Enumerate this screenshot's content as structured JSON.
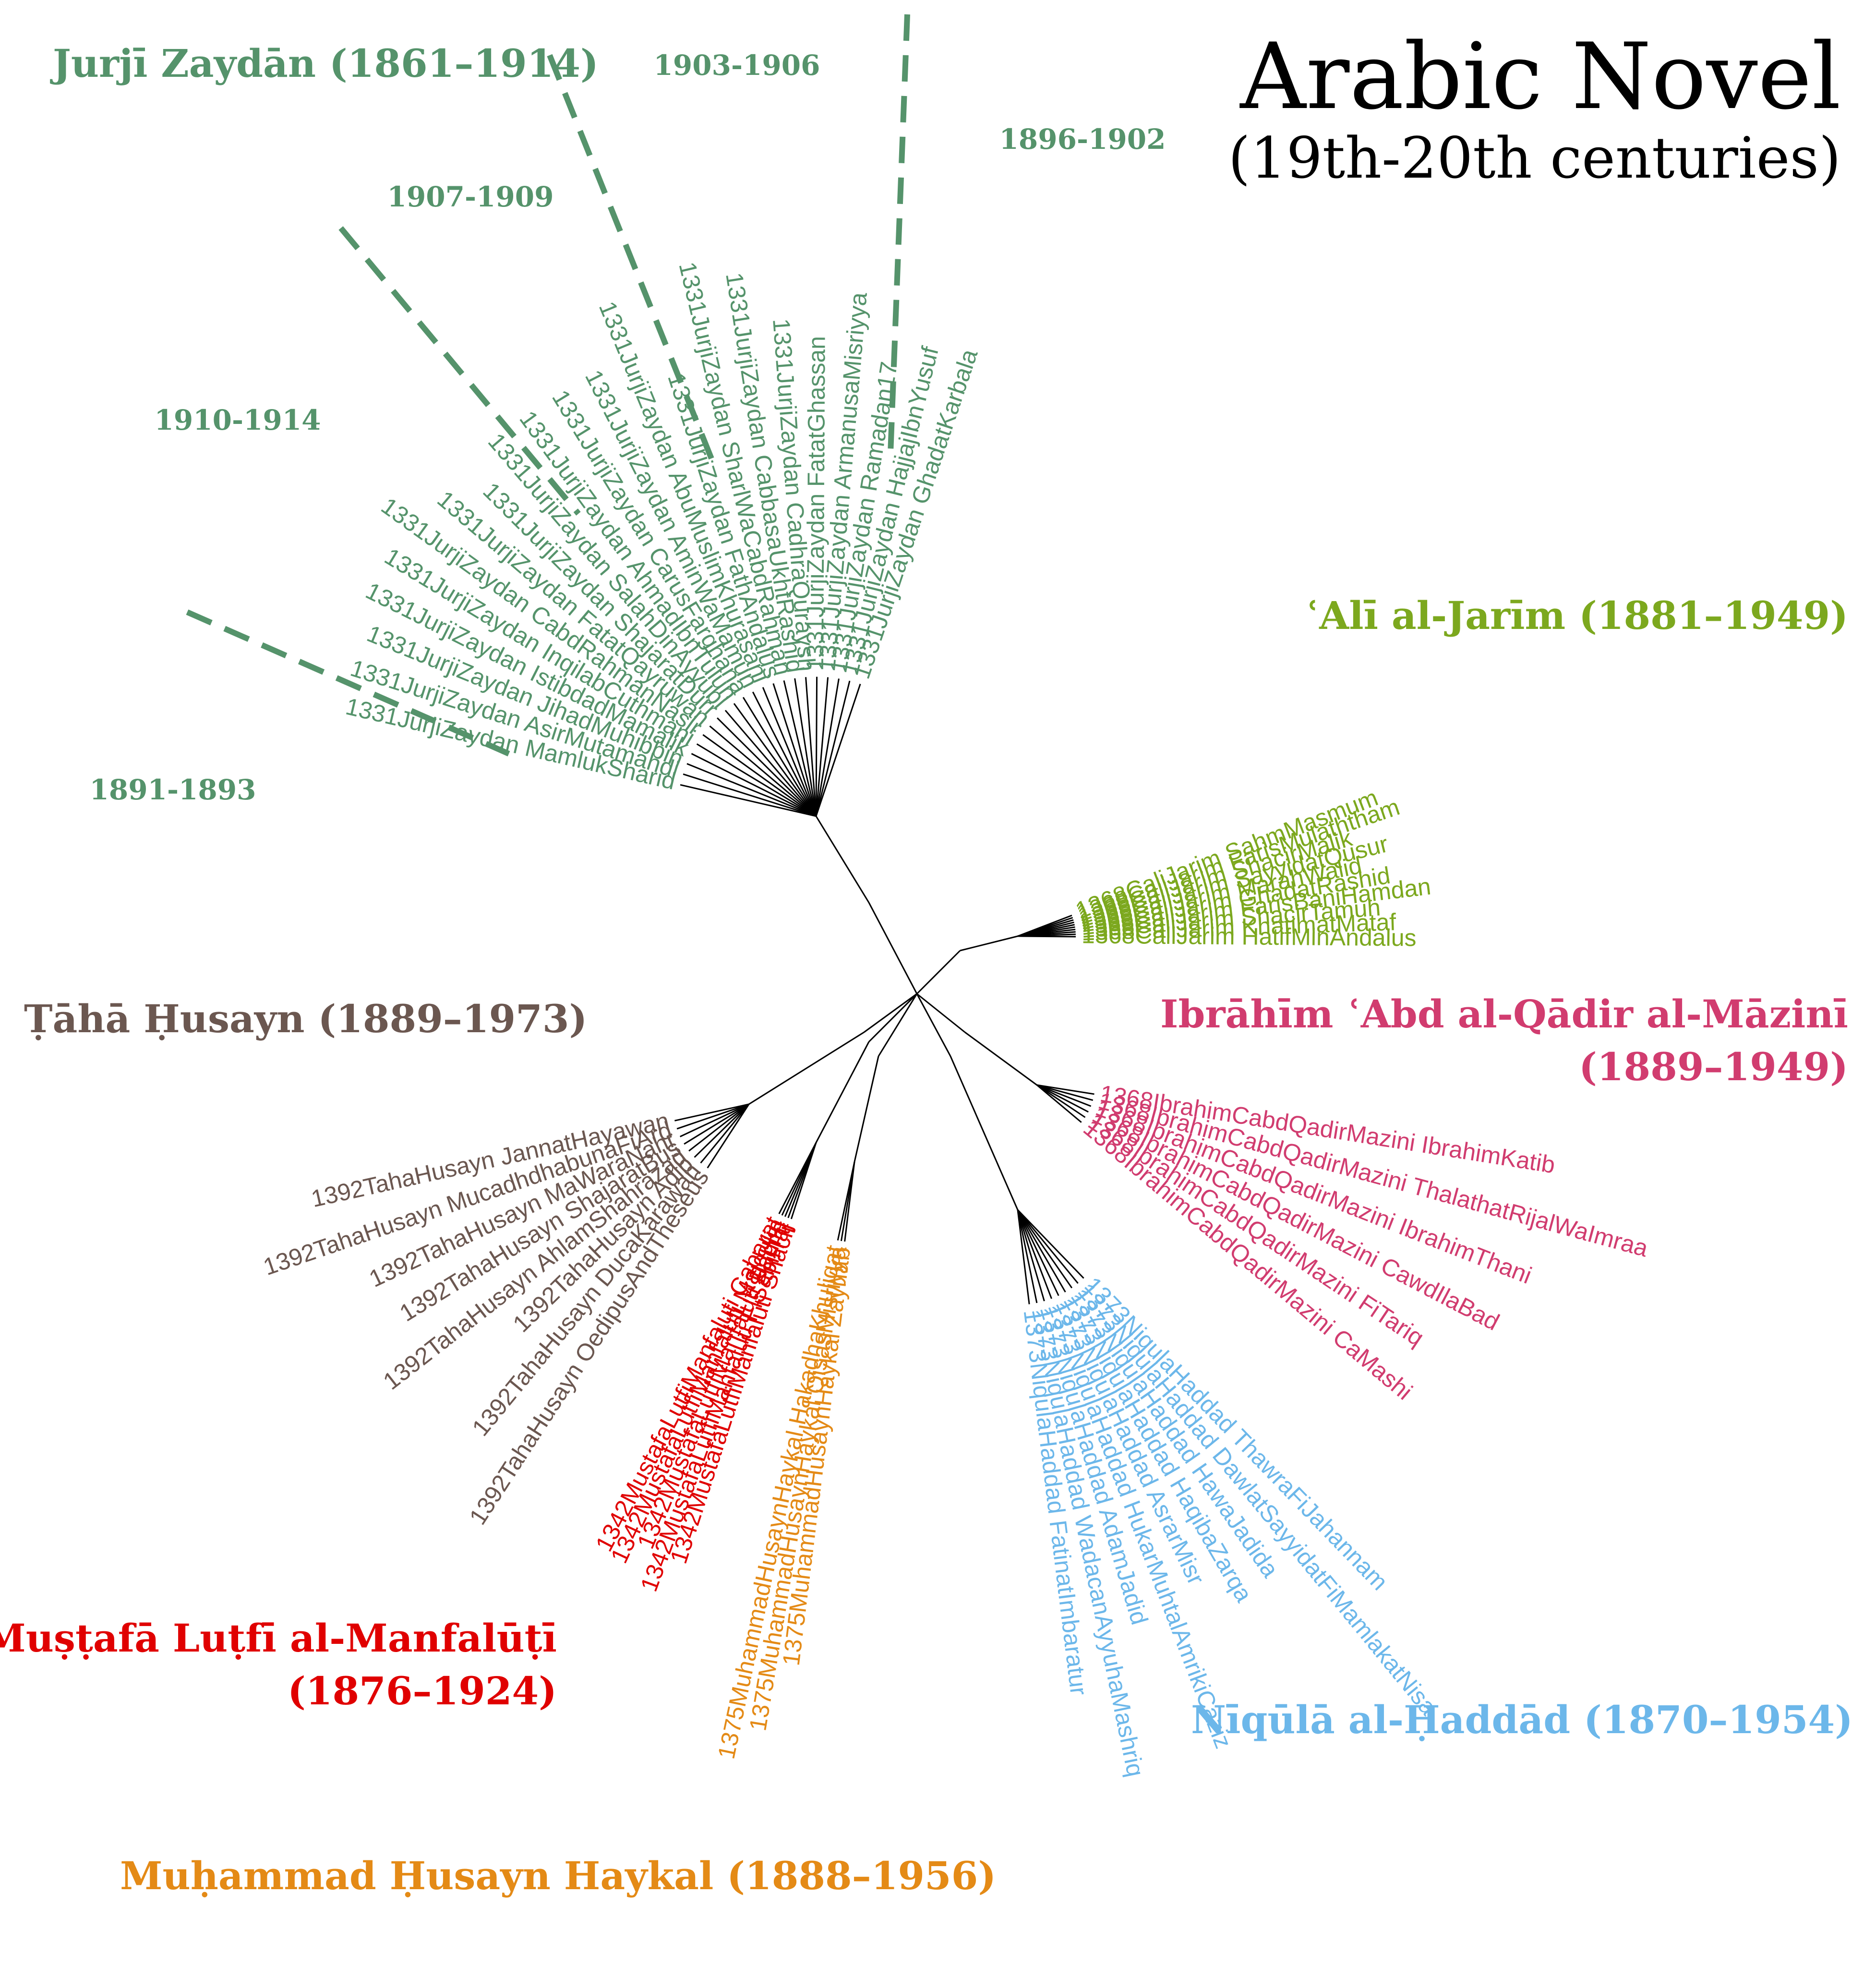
{
  "title": "Arabic Novel",
  "subtitle": "(19th-20th centuries)",
  "colors": {
    "zaydan": "#55936b",
    "jarim": "#7ca81e",
    "mazini": "#d13c6f",
    "haddad": "#6cb7ea",
    "haykal": "#e48a16",
    "manfaluti": "#e00000",
    "husayn": "#6b5750"
  },
  "groups": [
    {
      "key": "zaydan",
      "color": "#55936b",
      "author_lines": [
        "Jurjī Zaydān (1861–1914)"
      ],
      "leaves": [
        "1331JurjiZaydan MamlukSharid",
        "1331JurjiZaydan AsirMutamahdi",
        "1331JurjiZaydan JihadMuhibbin",
        "1331JurjiZaydan IstibdadMamalik",
        "1331JurjiZaydan InqilabCuthmani",
        "1331JurjiZaydan CabdRahmanNasir",
        "1331JurjiZaydan FatatQayruwan",
        "1331JurjiZaydan ShajaratDurr",
        "1331JurjiZaydan SalahDinAyyubi",
        "1331JurjiZaydan AhmadIbnTulun",
        "1331JurjiZaydan CarusFarghana",
        "1331JurjiZaydan AminWaMamun",
        "1331JurjiZaydan AbuMuslimKhurasani",
        "1331JurjiZaydan FathAndalus",
        "1331JurjiZaydan SharlWaCabdRahman",
        "1331JurjiZaydan CabbasaUkhtRashid",
        "1331JurjiZaydan CadhraQuraysh",
        "1331JurjiZaydan FatatGhassan",
        "1331JurjiZaydan ArmanusaMisriyya",
        "1331JurjiZaydan Ramadan17",
        "1331JurjiZaydan HajjajIbnYusuf",
        "1331JurjiZaydan GhadatKarbala"
      ]
    },
    {
      "key": "jarim",
      "color": "#7ca81e",
      "author_lines": [
        "ʿAlī al-Jarīm (1881–1949)"
      ],
      "leaves": [
        "1368CaliJarim SahmMasmum",
        "1368CaliJarim FarisMulaththam",
        "1368CaliJarim ShacirMalik",
        "1368CaliJarim SayyidatQusur",
        "1368CaliJarim MarahWalid",
        "1368CaliJarim GhadatRashid",
        "1368CaliJarim FarisBaniHamdan",
        "1368CaliJarim ShacirTamuh",
        "1368CaliJarim KhatimatMataf",
        "1368CaliJarim HatifMinAndalus"
      ]
    },
    {
      "key": "mazini",
      "color": "#d13c6f",
      "author_lines": [
        "Ibrāhīm ʿAbd al-Qādir al-Māzinī",
        "(1889–1949)"
      ],
      "leaves": [
        "1368IbrahimCabdQadirMazini IbrahimKatib",
        "1368IbrahimCabdQadirMazini ThalathatRijalWaImraa",
        "1368IbrahimCabdQadirMazini IbrahimThani",
        "1368IbrahimCabdQadirMazini CawdIlaBad",
        "1368IbrahimCabdQadirMazini FiTariq",
        "1368IbrahimCabdQadirMazini CaMashi"
      ]
    },
    {
      "key": "haddad",
      "color": "#6cb7ea",
      "author_lines": [
        "Nīqūlā al-Ḥaddād (1870–1954)"
      ],
      "leaves": [
        "1373NiqulaHaddad ThawraFiJahannam",
        "1373NiqulaHaddad DawlatSayyidatFiMamlakatNisa",
        "1373NiqulaHaddad HawaJadida",
        "1373NiqulaHaddad HaqibaZarqa",
        "1373NiqulaHaddad AsrarMisr",
        "1373NiqulaHaddad HukarMuhtalAmrikiCaziz",
        "1373NiqulaHaddad AdamJadid",
        "1373NiqulaHaddad WadacanAyyuhaMashriq",
        "1373NiqulaHaddad FatinatImbaratur"
      ]
    },
    {
      "key": "haykal",
      "color": "#e48a16",
      "author_lines": [
        "Muḥammad Ḥusayn Haykal (1888–1956)"
      ],
      "leaves": [
        "1375MuhammadHusaynHaykal Zaynab",
        "1375MuhammadHusaynHaykal QisasMisriyya",
        "1375MuhammadHusaynHaykal HakadhaKhuliqat"
      ]
    },
    {
      "key": "manfaluti",
      "color": "#e00000",
      "author_lines": [
        "Muṣṭafā Luṭfī al-Manfalūṭī",
        "(1876–1924)"
      ],
      "leaves": [
        "1342MustafaLutfiManfaluti Shacir",
        "1342MustafaLutfiManfaluti FiSabilTaj",
        "1342MustafaLutfiManfaluti Fadila",
        "1342MustafaLutfiManfaluti Majdulin",
        "1342MustafaLutfiManfaluti Cabarat"
      ]
    },
    {
      "key": "husayn",
      "color": "#6b5750",
      "author_lines": [
        "Ṭāhā Ḥusayn (1889–1973)"
      ],
      "leaves": [
        "1392TahaHusayn OedipusAndTheseus",
        "1392TahaHusayn DucaKarawan",
        "1392TahaHusayn Adib",
        "1392TahaHusayn AhlamShahrazad",
        "1392TahaHusayn ShajaratBus",
        "1392TahaHusayn MaWaraNahr",
        "1392TahaHusayn MucadhdhabunaFiArd",
        "1392TahaHusayn JannatHayawan"
      ]
    }
  ],
  "periods": [
    "1903-1906",
    "1896-1902",
    "1907-1909",
    "1910-1914",
    "1891-1893"
  ]
}
